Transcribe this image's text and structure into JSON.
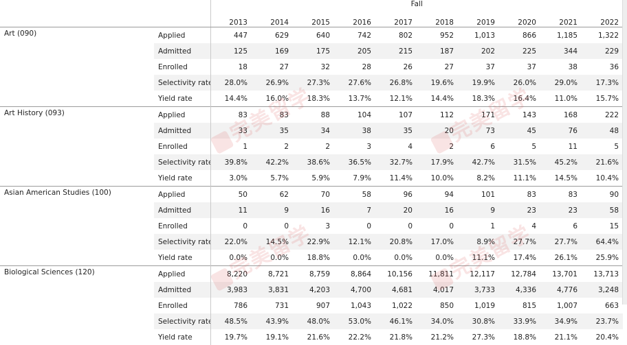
{
  "header": {
    "group_label": "Fall",
    "years": [
      "2013",
      "2014",
      "2015",
      "2016",
      "2017",
      "2018",
      "2019",
      "2020",
      "2021",
      "2022"
    ]
  },
  "programs": [
    {
      "name": "Art (090)",
      "rows": [
        {
          "metric": "Applied",
          "values": [
            "447",
            "629",
            "640",
            "742",
            "802",
            "952",
            "1,013",
            "866",
            "1,185",
            "1,322"
          ]
        },
        {
          "metric": "Admitted",
          "values": [
            "125",
            "169",
            "175",
            "205",
            "215",
            "187",
            "202",
            "225",
            "344",
            "229"
          ]
        },
        {
          "metric": "Enrolled",
          "values": [
            "18",
            "27",
            "32",
            "28",
            "26",
            "27",
            "37",
            "37",
            "38",
            "36"
          ]
        },
        {
          "metric": "Selectivity rate",
          "values": [
            "28.0%",
            "26.9%",
            "27.3%",
            "27.6%",
            "26.8%",
            "19.6%",
            "19.9%",
            "26.0%",
            "29.0%",
            "17.3%"
          ]
        },
        {
          "metric": "Yield rate",
          "values": [
            "14.4%",
            "16.0%",
            "18.3%",
            "13.7%",
            "12.1%",
            "14.4%",
            "18.3%",
            "16.4%",
            "11.0%",
            "15.7%"
          ]
        }
      ]
    },
    {
      "name": "Art History (093)",
      "rows": [
        {
          "metric": "Applied",
          "values": [
            "83",
            "83",
            "88",
            "104",
            "107",
            "112",
            "171",
            "143",
            "168",
            "222"
          ]
        },
        {
          "metric": "Admitted",
          "values": [
            "33",
            "35",
            "34",
            "38",
            "35",
            "20",
            "73",
            "45",
            "76",
            "48"
          ]
        },
        {
          "metric": "Enrolled",
          "values": [
            "1",
            "2",
            "2",
            "3",
            "4",
            "2",
            "6",
            "5",
            "11",
            "5"
          ]
        },
        {
          "metric": "Selectivity rate",
          "values": [
            "39.8%",
            "42.2%",
            "38.6%",
            "36.5%",
            "32.7%",
            "17.9%",
            "42.7%",
            "31.5%",
            "45.2%",
            "21.6%"
          ]
        },
        {
          "metric": "Yield rate",
          "values": [
            "3.0%",
            "5.7%",
            "5.9%",
            "7.9%",
            "11.4%",
            "10.0%",
            "8.2%",
            "11.1%",
            "14.5%",
            "10.4%"
          ]
        }
      ]
    },
    {
      "name": "Asian American Studies (100)",
      "rows": [
        {
          "metric": "Applied",
          "values": [
            "50",
            "62",
            "70",
            "58",
            "96",
            "94",
            "101",
            "83",
            "83",
            "90"
          ]
        },
        {
          "metric": "Admitted",
          "values": [
            "11",
            "9",
            "16",
            "7",
            "20",
            "16",
            "9",
            "23",
            "23",
            "58"
          ]
        },
        {
          "metric": "Enrolled",
          "values": [
            "0",
            "0",
            "3",
            "0",
            "0",
            "0",
            "1",
            "4",
            "6",
            "15"
          ]
        },
        {
          "metric": "Selectivity rate",
          "values": [
            "22.0%",
            "14.5%",
            "22.9%",
            "12.1%",
            "20.8%",
            "17.0%",
            "8.9%",
            "27.7%",
            "27.7%",
            "64.4%"
          ]
        },
        {
          "metric": "Yield rate",
          "values": [
            "0.0%",
            "0.0%",
            "18.8%",
            "0.0%",
            "0.0%",
            "0.0%",
            "11.1%",
            "17.4%",
            "26.1%",
            "25.9%"
          ]
        }
      ]
    },
    {
      "name": "Biological Sciences (120)",
      "rows": [
        {
          "metric": "Applied",
          "values": [
            "8,220",
            "8,721",
            "8,759",
            "8,864",
            "10,156",
            "11,811",
            "12,117",
            "12,784",
            "13,701",
            "13,713"
          ]
        },
        {
          "metric": "Admitted",
          "values": [
            "3,983",
            "3,831",
            "4,203",
            "4,700",
            "4,681",
            "4,017",
            "3,733",
            "4,336",
            "4,776",
            "3,248"
          ]
        },
        {
          "metric": "Enrolled",
          "values": [
            "786",
            "731",
            "907",
            "1,043",
            "1,022",
            "850",
            "1,019",
            "815",
            "1,007",
            "663"
          ]
        },
        {
          "metric": "Selectivity rate",
          "values": [
            "48.5%",
            "43.9%",
            "48.0%",
            "53.0%",
            "46.1%",
            "34.0%",
            "30.8%",
            "33.9%",
            "34.9%",
            "23.7%"
          ]
        },
        {
          "metric": "Yield rate",
          "values": [
            "19.7%",
            "19.1%",
            "21.6%",
            "22.2%",
            "21.8%",
            "21.2%",
            "27.3%",
            "18.8%",
            "21.1%",
            "20.4%"
          ]
        }
      ]
    }
  ],
  "watermark": {
    "text": "完美留学",
    "color": "#dc5a5a"
  }
}
